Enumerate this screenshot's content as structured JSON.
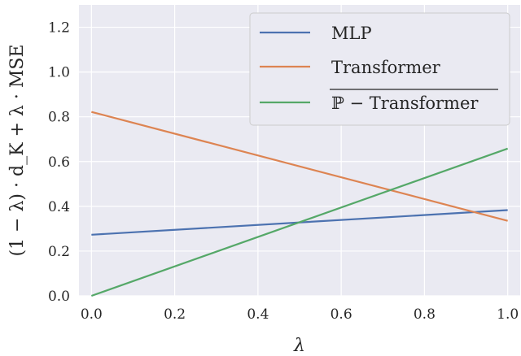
{
  "chart_data": {
    "type": "line",
    "xlabel": "λ",
    "ylabel": "(1 − λ) · d_K + λ · MSE",
    "xlim": [
      -0.03,
      1.03
    ],
    "ylim": [
      0.0,
      1.3
    ],
    "x_ticks": [
      "0.0",
      "0.2",
      "0.4",
      "0.6",
      "0.8",
      "1.0"
    ],
    "y_ticks": [
      "0.0",
      "0.2",
      "0.4",
      "0.6",
      "0.8",
      "1.0",
      "1.2"
    ],
    "grid": true,
    "legend_position": "top-right",
    "background": "#eaeaf2",
    "series": [
      {
        "name": "MLP",
        "color": "#4c72b0",
        "x": [
          0.0,
          1.0
        ],
        "y": [
          0.273,
          0.383
        ]
      },
      {
        "name": "Transformer",
        "color": "#dd8452",
        "x": [
          0.0,
          1.0
        ],
        "y": [
          0.822,
          0.335
        ]
      },
      {
        "name": "ℙ − Transformer",
        "overline": true,
        "color": "#55a868",
        "x": [
          0.0,
          1.0
        ],
        "y": [
          0.0,
          0.658
        ]
      }
    ]
  }
}
